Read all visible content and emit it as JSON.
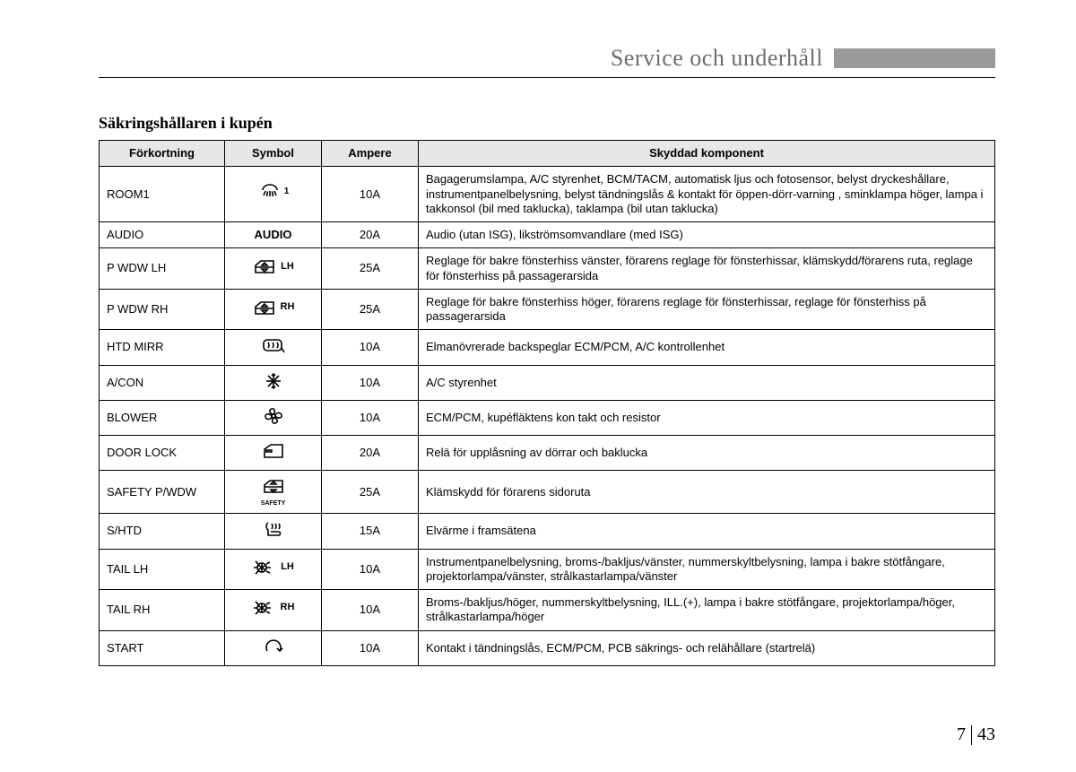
{
  "header": {
    "title": "Service och underhåll"
  },
  "pageNumber": {
    "chapter": "7",
    "page": "43"
  },
  "section": {
    "title": "Säkringshållaren i kupén"
  },
  "table": {
    "columns": [
      "Förkortning",
      "Symbol",
      "Ampere",
      "Skyddad komponent"
    ],
    "rows": [
      {
        "abbrev": "ROOM1",
        "symbol": {
          "type": "room",
          "super": "1"
        },
        "amp": "10A",
        "desc": "Bagagerumslampa, A/C styrenhet, BCM/TACM, automatisk ljus och fotosensor, belyst dryckeshållare, instrumentpanelbelysning, belyst tändningslås  & kontakt för öppen-dörr-varning , sminklampa höger, lampa i takkonsol (bil med taklucka), taklampa (bil utan taklucka)"
      },
      {
        "abbrev": "AUDIO",
        "symbol": {
          "type": "text",
          "text": "AUDIO"
        },
        "amp": "20A",
        "desc": "Audio (utan ISG), likströmsomvandlare (med ISG)"
      },
      {
        "abbrev": "P WDW LH",
        "symbol": {
          "type": "pwdw",
          "label": "LH"
        },
        "amp": "25A",
        "desc": "Reglage för bakre fönsterhiss vänster, förarens reglage för fönsterhissar, klämskydd/förarens ruta, reglage för fönsterhiss på passagerarsida"
      },
      {
        "abbrev": "P WDW RH",
        "symbol": {
          "type": "pwdw",
          "label": "RH"
        },
        "amp": "25A",
        "desc": "Reglage för bakre fönsterhiss höger, förarens reglage för fönsterhissar, reglage för fönsterhiss på passagerarsida"
      },
      {
        "abbrev": "HTD MIRR",
        "symbol": {
          "type": "htdmirr"
        },
        "amp": "10A",
        "desc": "Elmanövrerade backspeglar ECM/PCM, A/C kontrollenhet"
      },
      {
        "abbrev": "A/CON",
        "symbol": {
          "type": "snow"
        },
        "amp": "10A",
        "desc": "A/C styrenhet"
      },
      {
        "abbrev": "BLOWER",
        "symbol": {
          "type": "fan"
        },
        "amp": "10A",
        "desc": "ECM/PCM, kupéfläktens kon takt och resistor"
      },
      {
        "abbrev": "DOOR LOCK",
        "symbol": {
          "type": "door"
        },
        "amp": "20A",
        "desc": "Relä för upplåsning av dörrar och baklucka"
      },
      {
        "abbrev": "SAFETY P/WDW",
        "symbol": {
          "type": "safety",
          "sublabel": "SAFETY"
        },
        "amp": "25A",
        "desc": "Klämskydd för förarens sidoruta"
      },
      {
        "abbrev": "S/HTD",
        "symbol": {
          "type": "seatheat"
        },
        "amp": "15A",
        "desc": "Elvärme i framsätena"
      },
      {
        "abbrev": "TAIL LH",
        "symbol": {
          "type": "tail",
          "label": "LH"
        },
        "amp": "10A",
        "desc": "Instrumentpanelbelysning, broms-/bakljus/vänster, nummerskyltbelysning, lampa i bakre stötfångare, projektorlampa/vänster, strålkastarlampa/vänster"
      },
      {
        "abbrev": "TAIL RH",
        "symbol": {
          "type": "tail",
          "label": "RH"
        },
        "amp": "10A",
        "desc": "Broms-/bakljus/höger, nummerskyltbelysning, ILL.(+), lampa i bakre stötfångare, projektorlampa/höger, strålkastarlampa/höger"
      },
      {
        "abbrev": "START",
        "symbol": {
          "type": "start"
        },
        "amp": "10A",
        "desc": "Kontakt i tändningslås, ECM/PCM, PCB säkrings- och relähållare (startrelä)"
      }
    ]
  }
}
